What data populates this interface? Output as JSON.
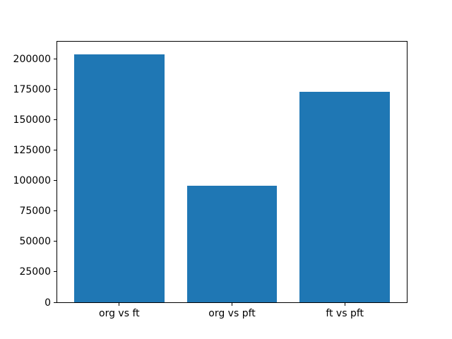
{
  "figure": {
    "background": "#ffffff"
  },
  "chart_data": {
    "type": "bar",
    "categories": [
      "org vs ft",
      "org vs pft",
      "ft vs pft"
    ],
    "values": [
      204000,
      95800,
      173000
    ],
    "title": "",
    "xlabel": "",
    "ylabel": "",
    "ylim": [
      0,
      214200
    ],
    "yticks": [
      0,
      25000,
      50000,
      75000,
      100000,
      125000,
      150000,
      175000,
      200000
    ],
    "bar_color": "#1f77b4",
    "axes_color": "#000000",
    "grid": false,
    "legend": null
  }
}
